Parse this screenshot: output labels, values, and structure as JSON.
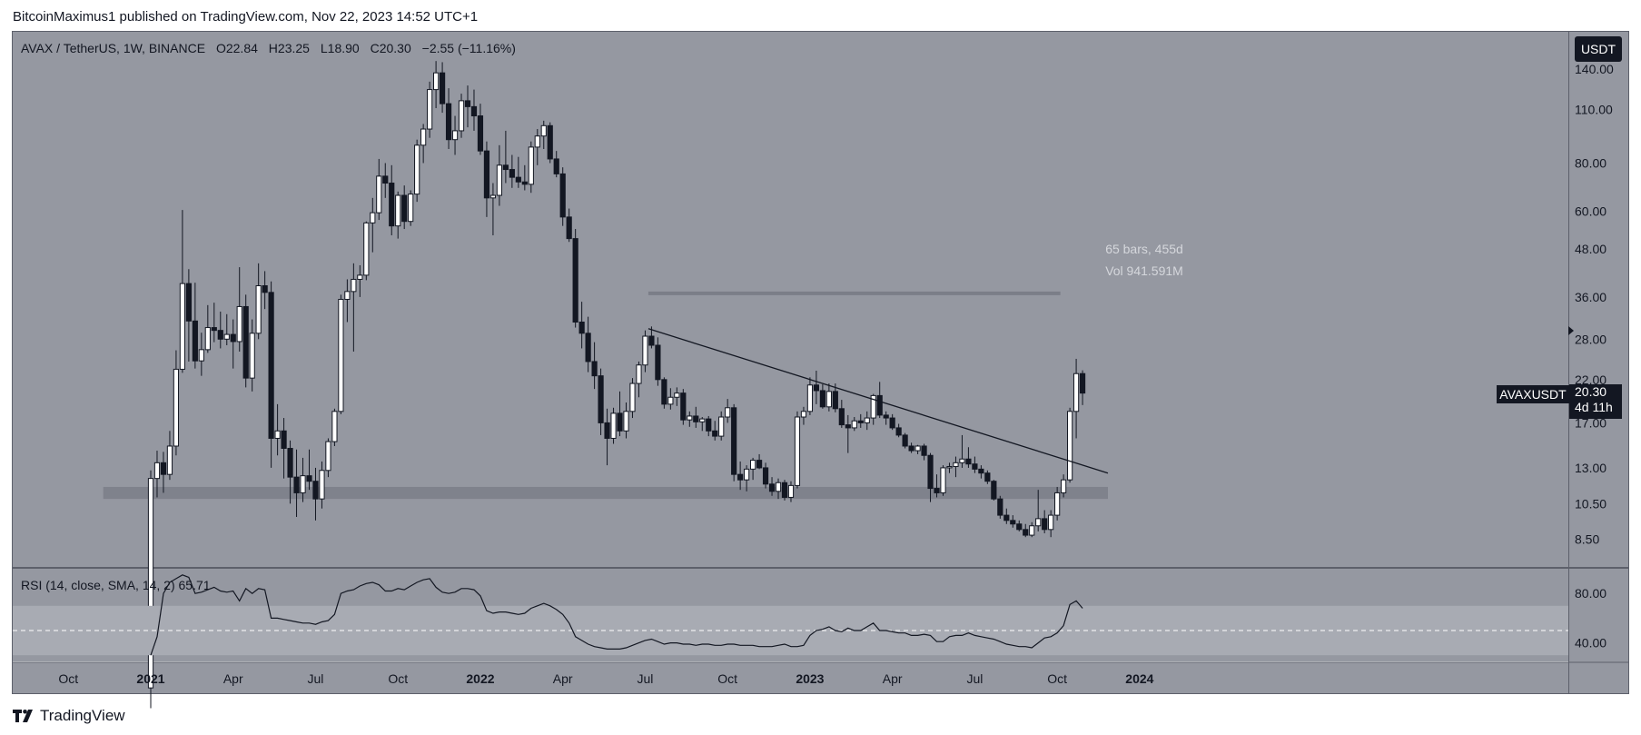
{
  "header": {
    "publisher": "BitcoinMaximus1 published on TradingView.com, Nov 22, 2023 14:52 UTC+1"
  },
  "legend": {
    "pair": "AVAX / TetherUS, 1W, BINANCE",
    "o_label": "O",
    "o": "22.84",
    "h_label": "H",
    "h": "23.25",
    "l_label": "L",
    "l": "18.90",
    "c_label": "C",
    "c": "20.30",
    "change": "−2.55 (−11.16%)"
  },
  "price_scale": {
    "unit": "USDT",
    "ticks": [
      "140.00",
      "110.00",
      "80.00",
      "60.00",
      "48.00",
      "36.00",
      "28.00",
      "22.00",
      "17.00",
      "13.00",
      "10.50",
      "8.50"
    ]
  },
  "badges": {
    "symbol": "AVAXUSDT",
    "price": "20.30",
    "countdown": "4d 11h"
  },
  "ruler": {
    "bars": "65 bars, 455d",
    "volume": "Vol 941.591M"
  },
  "rsi": {
    "label": "RSI (14, close, SMA, 14, 2)",
    "value": "65.71",
    "ticks": [
      "80.00",
      "40.00"
    ]
  },
  "time_axis": {
    "labels": [
      "Oct",
      "2021",
      "Apr",
      "Jul",
      "Oct",
      "2022",
      "Apr",
      "Jul",
      "Oct",
      "2023",
      "Apr",
      "Jul",
      "Oct",
      "2024"
    ]
  },
  "colors": {
    "pane_bg": "#9598a1",
    "up": "#ffffff",
    "down": "#131722",
    "line": "#131722",
    "band": "#787b86"
  },
  "branding": {
    "name": "TradingView"
  },
  "chart_data": {
    "type": "candlestick",
    "title": "AVAX / TetherUS, 1W, BINANCE",
    "y_scale": "log",
    "ylim": [
      7.2,
      175
    ],
    "start_week": 0,
    "start_label": "2020-12-28",
    "weeks_total": 152,
    "candles": [
      [
        3.5,
        12.8,
        3.1,
        12.2
      ],
      [
        12.2,
        14.4,
        10.9,
        13.4
      ],
      [
        13.4,
        14.3,
        11.2,
        12.5
      ],
      [
        12.5,
        16.2,
        12.1,
        14.8
      ],
      [
        14.8,
        26.2,
        14.0,
        23.4
      ],
      [
        23.4,
        60.5,
        22.9,
        39.0
      ],
      [
        39.0,
        42.5,
        24.5,
        31.2
      ],
      [
        31.2,
        39.2,
        23.5,
        24.6
      ],
      [
        24.6,
        29.1,
        22.5,
        26.3
      ],
      [
        26.3,
        34.3,
        25.8,
        30.0
      ],
      [
        30.0,
        34.8,
        27.5,
        29.5
      ],
      [
        29.5,
        33.0,
        26.5,
        28.0
      ],
      [
        28.0,
        32.5,
        27.0,
        28.8
      ],
      [
        28.8,
        31.5,
        23.5,
        27.6
      ],
      [
        27.6,
        43.0,
        26.0,
        34.0
      ],
      [
        34.0,
        36.5,
        21.0,
        22.2
      ],
      [
        22.2,
        31.5,
        20.5,
        29.0
      ],
      [
        29.0,
        44.0,
        28.0,
        38.5
      ],
      [
        38.5,
        42.0,
        33.5,
        37.0
      ],
      [
        37.0,
        39.5,
        13.0,
        15.5
      ],
      [
        15.5,
        19.0,
        14.0,
        16.2
      ],
      [
        16.2,
        17.5,
        12.2,
        14.6
      ],
      [
        14.6,
        15.3,
        10.5,
        12.3
      ],
      [
        12.3,
        14.5,
        9.7,
        11.2
      ],
      [
        11.2,
        13.8,
        10.6,
        12.4
      ],
      [
        12.4,
        14.5,
        11.4,
        12.0
      ],
      [
        12.0,
        13.0,
        9.5,
        10.8
      ],
      [
        10.8,
        13.5,
        10.2,
        12.8
      ],
      [
        12.8,
        15.5,
        12.3,
        15.2
      ],
      [
        15.2,
        18.5,
        14.8,
        18.2
      ],
      [
        18.2,
        36.5,
        17.9,
        35.5
      ],
      [
        35.5,
        40.0,
        31.0,
        37.2
      ],
      [
        37.2,
        44.0,
        26.0,
        40.0
      ],
      [
        40.0,
        43.5,
        36.0,
        41.0
      ],
      [
        41.0,
        56.5,
        39.8,
        56.0
      ],
      [
        56.0,
        65.0,
        47.0,
        59.5
      ],
      [
        59.5,
        82.0,
        57.0,
        74.0
      ],
      [
        74.0,
        80.0,
        65.0,
        71.0
      ],
      [
        71.0,
        79.0,
        52.0,
        55.0
      ],
      [
        55.0,
        67.5,
        51.0,
        66.0
      ],
      [
        66.0,
        70.0,
        54.0,
        56.5
      ],
      [
        56.5,
        68.0,
        55.0,
        66.5
      ],
      [
        66.5,
        92.0,
        63.5,
        89.0
      ],
      [
        89.0,
        101.0,
        80.0,
        98.0
      ],
      [
        98.0,
        130.0,
        93.0,
        124.0
      ],
      [
        124.0,
        147.0,
        111.0,
        137.0
      ],
      [
        137.0,
        146.0,
        108.0,
        114.0
      ],
      [
        114.0,
        125.0,
        87.0,
        92.0
      ],
      [
        92.0,
        106.0,
        84.0,
        97.0
      ],
      [
        97.0,
        121.0,
        93.0,
        116.0
      ],
      [
        116.0,
        127.0,
        99.0,
        112.0
      ],
      [
        112.0,
        124.0,
        97.0,
        106.0
      ],
      [
        106.0,
        114.0,
        84.0,
        86.0
      ],
      [
        86.0,
        91.0,
        58.0,
        65.0
      ],
      [
        65.0,
        71.0,
        52.0,
        66.0
      ],
      [
        66.0,
        89.0,
        62.0,
        79.0
      ],
      [
        79.0,
        97.0,
        71.0,
        77.0
      ],
      [
        77.0,
        84.0,
        69.0,
        73.5
      ],
      [
        73.5,
        83.0,
        69.0,
        71.5
      ],
      [
        71.5,
        79.0,
        68.0,
        70.5
      ],
      [
        70.5,
        91.0,
        67.0,
        88.0
      ],
      [
        88.0,
        98.0,
        79.0,
        94.0
      ],
      [
        94.0,
        103.0,
        87.0,
        100.0
      ],
      [
        100.0,
        102.0,
        80.0,
        82.0
      ],
      [
        82.0,
        86.0,
        73.5,
        75.0
      ],
      [
        75.0,
        78.0,
        55.0,
        58.0
      ],
      [
        58.0,
        61.0,
        50.0,
        51.0
      ],
      [
        51.0,
        54.0,
        30.0,
        31.0
      ],
      [
        31.0,
        35.0,
        26.5,
        29.0
      ],
      [
        29.0,
        32.0,
        23.0,
        24.5
      ],
      [
        24.5,
        27.5,
        20.8,
        22.5
      ],
      [
        22.5,
        23.5,
        15.8,
        17.0
      ],
      [
        17.0,
        18.5,
        13.2,
        15.5
      ],
      [
        15.5,
        18.6,
        15.0,
        18.0
      ],
      [
        18.0,
        20.5,
        15.7,
        16.2
      ],
      [
        16.2,
        19.2,
        15.5,
        18.2
      ],
      [
        18.2,
        22.2,
        17.5,
        21.5
      ],
      [
        21.5,
        24.5,
        19.8,
        24.0
      ],
      [
        24.0,
        29.5,
        23.0,
        28.5
      ],
      [
        28.5,
        30.2,
        26.5,
        27.0
      ],
      [
        27.0,
        28.3,
        21.2,
        22.0
      ],
      [
        22.0,
        22.3,
        18.5,
        19.0
      ],
      [
        19.0,
        20.9,
        18.4,
        19.8
      ],
      [
        19.8,
        21.0,
        18.8,
        20.3
      ],
      [
        20.3,
        20.8,
        16.8,
        17.3
      ],
      [
        17.3,
        18.2,
        16.6,
        17.7
      ],
      [
        17.7,
        18.7,
        16.5,
        17.1
      ],
      [
        17.1,
        17.6,
        16.2,
        17.4
      ],
      [
        17.4,
        17.7,
        15.7,
        16.2
      ],
      [
        16.2,
        17.2,
        15.3,
        15.7
      ],
      [
        15.7,
        18.2,
        15.3,
        17.6
      ],
      [
        17.6,
        19.6,
        17.0,
        18.6
      ],
      [
        18.6,
        19.0,
        12.0,
        12.5
      ],
      [
        12.5,
        13.5,
        11.4,
        12.1
      ],
      [
        12.1,
        13.2,
        11.3,
        12.9
      ],
      [
        12.9,
        13.8,
        12.1,
        13.6
      ],
      [
        13.6,
        14.1,
        12.9,
        13.0
      ],
      [
        13.0,
        13.4,
        11.5,
        11.8
      ],
      [
        11.8,
        12.3,
        11.0,
        11.3
      ],
      [
        11.3,
        12.2,
        10.8,
        11.9
      ],
      [
        11.9,
        12.1,
        10.7,
        10.9
      ],
      [
        10.9,
        12.0,
        10.6,
        11.7
      ],
      [
        11.7,
        18.2,
        11.5,
        17.6
      ],
      [
        17.6,
        18.7,
        16.8,
        18.2
      ],
      [
        18.2,
        22.3,
        17.8,
        21.3
      ],
      [
        21.3,
        23.2,
        19.0,
        20.6
      ],
      [
        20.6,
        21.4,
        18.5,
        18.7
      ],
      [
        18.7,
        21.5,
        18.2,
        20.5
      ],
      [
        20.5,
        21.5,
        18.1,
        18.5
      ],
      [
        18.5,
        19.5,
        16.5,
        16.8
      ],
      [
        16.8,
        17.8,
        14.2,
        16.5
      ],
      [
        16.5,
        17.6,
        16.2,
        17.2
      ],
      [
        17.2,
        17.9,
        16.5,
        17.0
      ],
      [
        17.0,
        18.2,
        16.3,
        17.5
      ],
      [
        17.5,
        20.2,
        16.8,
        20.0
      ],
      [
        20.0,
        21.7,
        17.5,
        17.8
      ],
      [
        17.8,
        18.2,
        16.8,
        17.5
      ],
      [
        17.5,
        17.9,
        16.3,
        16.5
      ],
      [
        16.5,
        16.9,
        15.6,
        15.8
      ],
      [
        15.8,
        16.0,
        14.6,
        14.8
      ],
      [
        14.8,
        15.1,
        14.2,
        14.4
      ],
      [
        14.4,
        14.9,
        14.1,
        14.8
      ],
      [
        14.8,
        15.0,
        13.6,
        14.0
      ],
      [
        14.0,
        14.2,
        10.6,
        11.5
      ],
      [
        11.5,
        12.5,
        10.9,
        11.2
      ],
      [
        11.2,
        13.2,
        11.0,
        13.0
      ],
      [
        13.0,
        13.4,
        12.6,
        13.1
      ],
      [
        13.1,
        13.9,
        12.3,
        13.4
      ],
      [
        13.4,
        15.8,
        13.0,
        13.7
      ],
      [
        13.7,
        14.7,
        13.0,
        13.3
      ],
      [
        13.3,
        13.9,
        12.6,
        12.9
      ],
      [
        12.9,
        13.2,
        12.2,
        12.6
      ],
      [
        12.6,
        12.8,
        11.8,
        12.0
      ],
      [
        12.0,
        12.1,
        10.7,
        10.8
      ],
      [
        10.8,
        11.0,
        9.6,
        9.8
      ],
      [
        9.8,
        10.2,
        9.3,
        9.5
      ],
      [
        9.5,
        9.8,
        9.1,
        9.3
      ],
      [
        9.3,
        9.5,
        8.9,
        9.0
      ],
      [
        9.0,
        9.3,
        8.6,
        8.7
      ],
      [
        8.7,
        9.4,
        8.6,
        9.2
      ],
      [
        9.2,
        11.4,
        8.9,
        9.6
      ],
      [
        9.6,
        10.1,
        8.8,
        9.0
      ],
      [
        9.0,
        10.1,
        8.6,
        9.8
      ],
      [
        9.8,
        11.6,
        9.5,
        11.2
      ],
      [
        11.2,
        12.5,
        10.9,
        12.1
      ],
      [
        12.1,
        18.6,
        11.9,
        18.2
      ],
      [
        18.2,
        24.9,
        15.5,
        22.8
      ],
      [
        22.8,
        23.25,
        18.9,
        20.3
      ]
    ],
    "support_zone": {
      "low": 10.8,
      "high": 11.6,
      "from_week": -7.5,
      "to_week": 151
    },
    "trendline": {
      "from": {
        "week": 78.5,
        "price": 29.8
      },
      "to": {
        "week": 151,
        "price": 12.6
      }
    },
    "measure_ruler": {
      "price": 36.8,
      "from_week": 78.5,
      "to_week": 143.5,
      "bars": 65,
      "days": 455,
      "volume": "941.591M"
    },
    "rsi_series": {
      "period": 14,
      "ma": "SMA",
      "ylim": [
        25,
        100
      ],
      "upper_band": 70,
      "lower_band": 30,
      "midline": 50,
      "last": 65.71,
      "values": [
        30,
        45,
        80,
        89,
        92,
        95,
        93,
        80,
        81,
        83,
        85,
        82,
        81,
        82,
        74,
        84,
        80,
        84,
        83,
        60,
        60,
        59,
        58,
        57,
        56,
        56,
        55,
        57,
        58,
        63,
        80,
        82,
        83,
        86,
        88,
        89,
        87,
        82,
        82,
        84,
        83,
        86,
        89,
        91,
        92,
        85,
        81,
        80,
        81,
        84,
        84,
        83,
        78,
        66,
        64,
        65,
        65,
        64,
        63,
        64,
        68,
        70,
        72,
        70,
        67,
        63,
        56,
        45,
        42,
        39,
        37,
        36,
        35,
        35,
        35,
        36,
        38,
        40,
        42,
        43,
        41,
        39,
        40,
        40,
        39,
        39,
        38,
        39,
        39,
        38,
        38,
        39,
        39,
        38,
        38,
        38,
        37,
        37,
        37,
        38,
        39,
        37,
        37,
        38,
        46,
        50,
        51,
        53,
        50,
        49,
        52,
        50,
        50,
        53,
        56,
        50,
        50,
        49,
        48,
        48,
        46,
        46,
        47,
        46,
        41,
        41,
        45,
        46,
        46,
        48,
        46,
        45,
        44,
        43,
        41,
        39,
        38,
        37,
        37,
        36,
        40,
        44,
        45,
        48,
        54,
        71,
        74,
        68
      ]
    }
  }
}
